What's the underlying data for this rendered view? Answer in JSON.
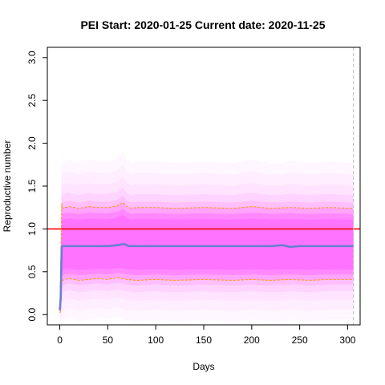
{
  "chart_data": {
    "type": "line",
    "title_parts": [
      "PEI Start:",
      "2020-01-25",
      "Current date:",
      "2020-11-25"
    ],
    "xlabel": "Days",
    "ylabel": "Reproductive number",
    "xlim": [
      -13,
      313
    ],
    "ylim": [
      -0.12,
      3.12
    ],
    "x_ticks": [
      0,
      50,
      100,
      150,
      200,
      250,
      300
    ],
    "y_ticks": [
      0.0,
      0.5,
      1.0,
      1.5,
      2.0,
      2.5,
      3.0
    ],
    "y_tick_labels": [
      "0.0",
      "0.5",
      "1.0",
      "1.5",
      "2.0",
      "2.5",
      "3.0"
    ],
    "x_tick_labels": [
      "0",
      "50",
      "100",
      "150",
      "200",
      "250",
      "300"
    ],
    "reference_hline": 1.0,
    "current_day_vline": 306,
    "series": [
      {
        "role": "median",
        "x": [
          0,
          1,
          2,
          3,
          5,
          10,
          20,
          30,
          40,
          50,
          60,
          65,
          68,
          72,
          80,
          100,
          120,
          150,
          180,
          200,
          220,
          232,
          240,
          250,
          270,
          290,
          306
        ],
        "values": [
          0.05,
          0.2,
          0.79,
          0.8,
          0.8,
          0.8,
          0.8,
          0.8,
          0.8,
          0.8,
          0.81,
          0.82,
          0.82,
          0.8,
          0.8,
          0.8,
          0.8,
          0.8,
          0.8,
          0.8,
          0.8,
          0.81,
          0.79,
          0.8,
          0.8,
          0.8,
          0.8
        ]
      },
      {
        "role": "upper-quantile",
        "x": [
          0,
          1,
          2,
          3,
          5,
          10,
          20,
          30,
          40,
          50,
          60,
          66,
          70,
          75,
          80,
          100,
          120,
          150,
          180,
          200,
          220,
          240,
          260,
          280,
          306
        ],
        "values": [
          0.08,
          0.5,
          1.3,
          1.24,
          1.25,
          1.26,
          1.24,
          1.26,
          1.25,
          1.25,
          1.27,
          1.31,
          1.26,
          1.24,
          1.25,
          1.25,
          1.24,
          1.25,
          1.24,
          1.26,
          1.24,
          1.25,
          1.24,
          1.25,
          1.24
        ]
      },
      {
        "role": "lower-quantile",
        "x": [
          0,
          1,
          2,
          3,
          5,
          10,
          20,
          30,
          40,
          50,
          60,
          66,
          70,
          80,
          100,
          120,
          150,
          180,
          200,
          220,
          240,
          260,
          280,
          306
        ],
        "values": [
          0.02,
          0.05,
          0.38,
          0.4,
          0.41,
          0.42,
          0.4,
          0.41,
          0.42,
          0.41,
          0.43,
          0.42,
          0.41,
          0.4,
          0.41,
          0.4,
          0.41,
          0.4,
          0.41,
          0.4,
          0.41,
          0.4,
          0.41,
          0.41
        ]
      }
    ],
    "colors": {
      "cloud": "#ff66ff",
      "median": "#6a7fd0",
      "quantiles": "#ff9900",
      "reference": "#ff0000",
      "vline": "#bbbbbb"
    }
  }
}
